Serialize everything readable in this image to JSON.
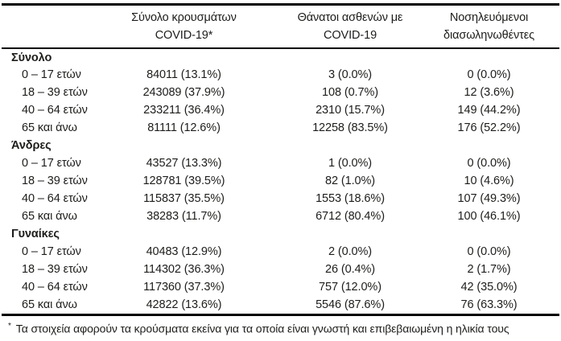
{
  "colors": {
    "text": "#1d1d1b",
    "rule": "#000000",
    "background": "#ffffff"
  },
  "table": {
    "headers": [
      {
        "line1": "Σύνολο κρουσμάτων",
        "line2": "COVID-19*"
      },
      {
        "line1": "Θάνατοι ασθενών με",
        "line2": "COVID-19"
      },
      {
        "line1": "Νοσηλευόμενοι",
        "line2": "διασωληνωθέντες"
      }
    ],
    "groups": [
      {
        "label": "Σύνολο",
        "rows": [
          {
            "label": "0 – 17 ετών",
            "cases": "84011 (13.1%)",
            "deaths": "3 (0.0%)",
            "intubated": "0 (0.0%)"
          },
          {
            "label": "18 – 39 ετών",
            "cases": "243089 (37.9%)",
            "deaths": "108 (0.7%)",
            "intubated": "12 (3.6%)"
          },
          {
            "label": "40 – 64 ετών",
            "cases": "233211 (36.4%)",
            "deaths": "2310 (15.7%)",
            "intubated": "149 (44.2%)"
          },
          {
            "label": "65 και άνω",
            "cases": "81111 (12.6%)",
            "deaths": "12258 (83.5%)",
            "intubated": "176 (52.2%)"
          }
        ]
      },
      {
        "label": "Άνδρες",
        "rows": [
          {
            "label": "0 – 17 ετών",
            "cases": "43527 (13.3%)",
            "deaths": "1 (0.0%)",
            "intubated": "0 (0.0%)"
          },
          {
            "label": "18 – 39 ετών",
            "cases": "128781 (39.5%)",
            "deaths": "82 (1.0%)",
            "intubated": "10 (4.6%)"
          },
          {
            "label": "40 – 64 ετών",
            "cases": "115837 (35.5%)",
            "deaths": "1553 (18.6%)",
            "intubated": "107 (49.3%)"
          },
          {
            "label": "65 και άνω",
            "cases": "38283 (11.7%)",
            "deaths": "6712 (80.4%)",
            "intubated": "100 (46.1%)"
          }
        ]
      },
      {
        "label": "Γυναίκες",
        "rows": [
          {
            "label": "0 – 17 ετών",
            "cases": "40483 (12.9%)",
            "deaths": "2 (0.0%)",
            "intubated": "0 (0.0%)"
          },
          {
            "label": "18 – 39 ετών",
            "cases": "114302 (36.3%)",
            "deaths": "26 (0.4%)",
            "intubated": "2 (1.7%)"
          },
          {
            "label": "40 – 64 ετών",
            "cases": "117360 (37.3%)",
            "deaths": "757 (12.0%)",
            "intubated": "42 (35.0%)"
          },
          {
            "label": "65 και άνω",
            "cases": "42822 (13.6%)",
            "deaths": "5546 (87.6%)",
            "intubated": "76 (63.3%)"
          }
        ]
      }
    ]
  },
  "footnote": {
    "marker": "*",
    "text": "Τα στοιχεία αφορούν τα κρούσματα εκείνα για τα οποία είναι γνωστή και επιβεβαιωμένη η ηλικία τους"
  }
}
